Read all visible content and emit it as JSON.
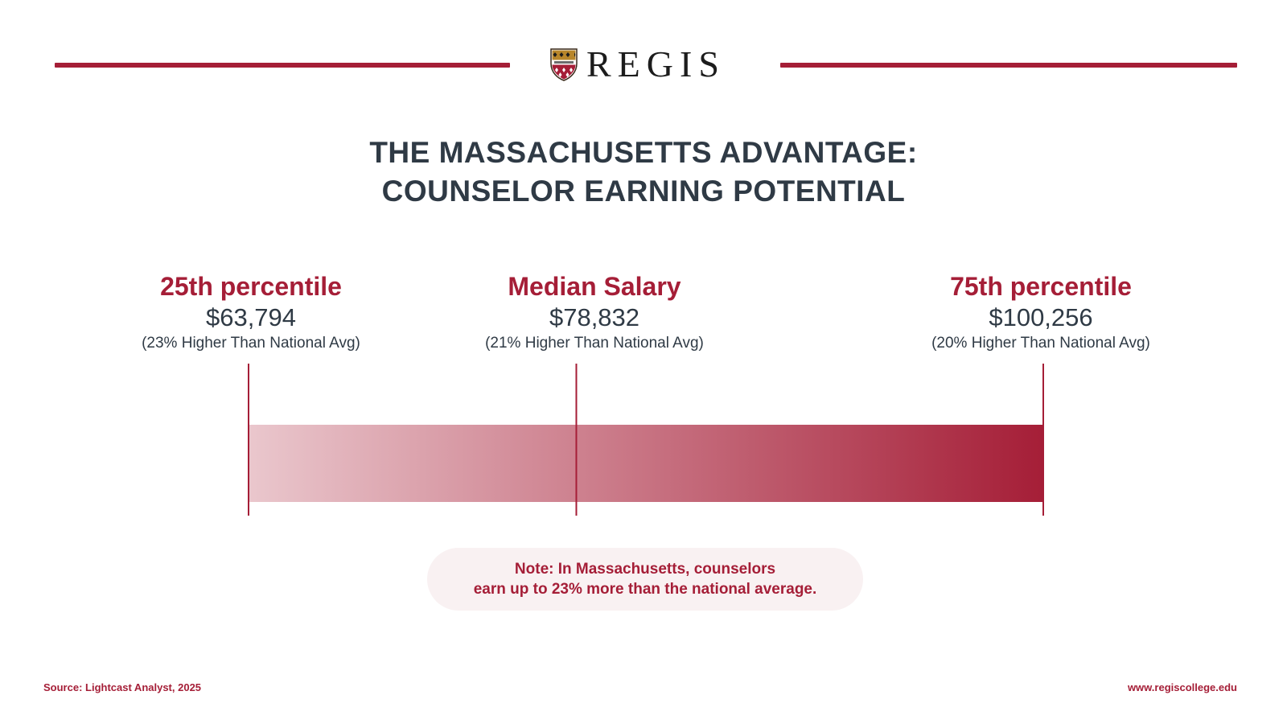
{
  "header": {
    "brand": "REGIS",
    "logo_icon": "regis-shield-crest",
    "accent_color": "#a51e37"
  },
  "title": {
    "line1": "THE MASSACHUSETTS ADVANTAGE:",
    "line2": "COUNSELOR EARNING POTENTIAL"
  },
  "chart_data": {
    "type": "bar",
    "orientation": "horizontal-range",
    "gradient": {
      "from": "#eac7cd",
      "to": "#a51e37"
    },
    "points": [
      {
        "label": "25th percentile",
        "value": 63794,
        "value_text": "$63,794",
        "note": "(23% Higher Than National Avg)"
      },
      {
        "label": "Median Salary",
        "value": 78832,
        "value_text": "$78,832",
        "note": "(21% Higher Than National Avg)"
      },
      {
        "label": "75th percentile",
        "value": 100256,
        "value_text": "$100,256",
        "note": "(20% Higher Than National Avg)"
      }
    ]
  },
  "note": {
    "line1": "Note: In Massachusetts, counselors",
    "line2": "earn up to 23% more than the national average."
  },
  "footer": {
    "source": "Source: Lightcast Analyst, 2025",
    "url": "www.regiscollege.edu"
  }
}
